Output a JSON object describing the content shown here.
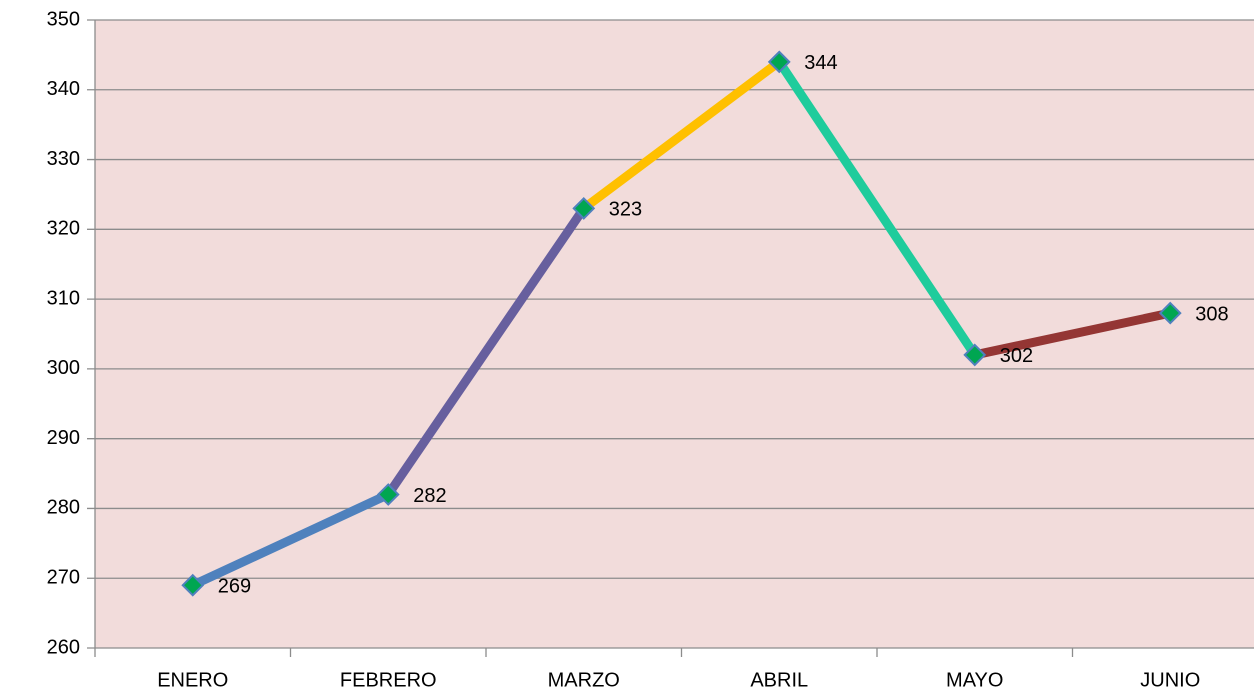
{
  "chart_data": {
    "type": "line",
    "categories": [
      "ENERO",
      "FEBRERO",
      "MARZO",
      "ABRIL",
      "MAYO",
      "JUNIO"
    ],
    "values": [
      269,
      282,
      323,
      344,
      302,
      308
    ],
    "segment_colors": [
      "#4f81bd",
      "#675f9e",
      "#ffc000",
      "#1fcc9c",
      "#943634"
    ],
    "marker_color": "#00a651",
    "marker_edge_color": "#4f81bd",
    "background_color": "#f2dcdb",
    "ylim": [
      260,
      350
    ],
    "yticks": [
      260,
      270,
      280,
      290,
      300,
      310,
      320,
      330,
      340,
      350
    ],
    "grid": true
  }
}
